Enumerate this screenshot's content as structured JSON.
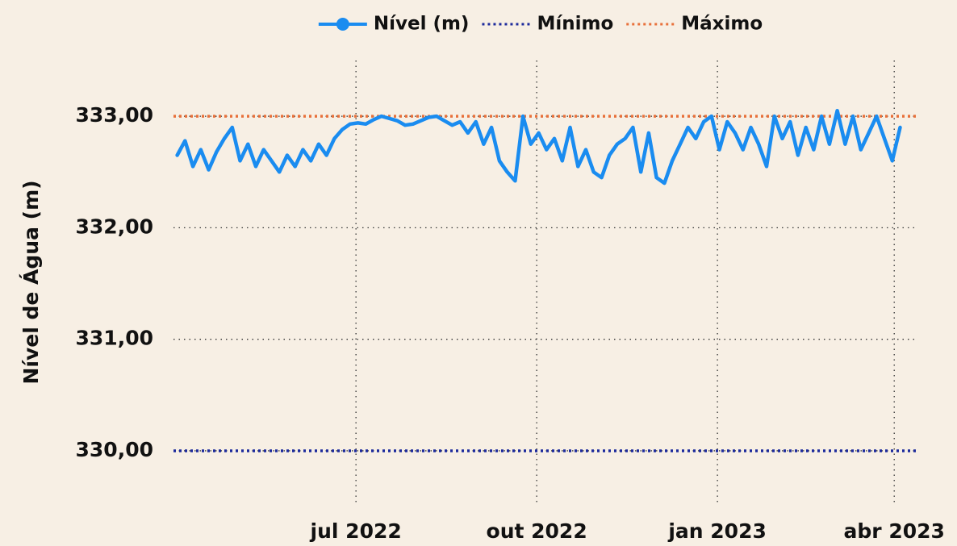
{
  "chart_data": {
    "type": "line",
    "ylabel": "Nível de Água (m)",
    "x": [
      "2022-04-01",
      "2022-04-05",
      "2022-04-09",
      "2022-04-13",
      "2022-04-17",
      "2022-04-21",
      "2022-04-25",
      "2022-04-29",
      "2022-05-03",
      "2022-05-07",
      "2022-05-11",
      "2022-05-15",
      "2022-05-19",
      "2022-05-23",
      "2022-05-27",
      "2022-05-31",
      "2022-06-04",
      "2022-06-08",
      "2022-06-12",
      "2022-06-16",
      "2022-06-20",
      "2022-06-24",
      "2022-06-28",
      "2022-07-02",
      "2022-07-06",
      "2022-07-10",
      "2022-07-14",
      "2022-07-18",
      "2022-07-22",
      "2022-07-26",
      "2022-07-30",
      "2022-08-03",
      "2022-08-07",
      "2022-08-11",
      "2022-08-15",
      "2022-08-19",
      "2022-08-23",
      "2022-08-27",
      "2022-08-31",
      "2022-09-04",
      "2022-09-08",
      "2022-09-12",
      "2022-09-16",
      "2022-09-20",
      "2022-09-24",
      "2022-09-28",
      "2022-10-02",
      "2022-10-06",
      "2022-10-10",
      "2022-10-14",
      "2022-10-18",
      "2022-10-22",
      "2022-10-26",
      "2022-10-30",
      "2022-11-03",
      "2022-11-07",
      "2022-11-11",
      "2022-11-15",
      "2022-11-19",
      "2022-11-23",
      "2022-11-27",
      "2022-12-01",
      "2022-12-05",
      "2022-12-09",
      "2022-12-13",
      "2022-12-17",
      "2022-12-21",
      "2022-12-25",
      "2022-12-29",
      "2023-01-02",
      "2023-01-06",
      "2023-01-10",
      "2023-01-14",
      "2023-01-18",
      "2023-01-22",
      "2023-01-26",
      "2023-01-30",
      "2023-02-03",
      "2023-02-07",
      "2023-02-11",
      "2023-02-15",
      "2023-02-19",
      "2023-02-23",
      "2023-02-27",
      "2023-03-03",
      "2023-03-07",
      "2023-03-11",
      "2023-03-15",
      "2023-03-19",
      "2023-03-23",
      "2023-03-27",
      "2023-03-31",
      "2023-04-04"
    ],
    "series": [
      {
        "name": "Nível (m)",
        "color": "#1a8cf0",
        "values": [
          332.65,
          332.78,
          332.55,
          332.7,
          332.52,
          332.68,
          332.8,
          332.9,
          332.6,
          332.75,
          332.55,
          332.7,
          332.6,
          332.5,
          332.65,
          332.55,
          332.7,
          332.6,
          332.75,
          332.65,
          332.8,
          332.88,
          332.93,
          332.94,
          332.93,
          332.97,
          333.0,
          332.98,
          332.96,
          332.92,
          332.93,
          332.96,
          332.99,
          333.0,
          332.96,
          332.92,
          332.95,
          332.85,
          332.95,
          332.75,
          332.9,
          332.6,
          332.5,
          332.42,
          333.0,
          332.75,
          332.85,
          332.7,
          332.8,
          332.6,
          332.9,
          332.55,
          332.7,
          332.5,
          332.45,
          332.65,
          332.75,
          332.8,
          332.9,
          332.5,
          332.85,
          332.45,
          332.4,
          332.6,
          332.75,
          332.9,
          332.8,
          332.95,
          333.0,
          332.7,
          332.95,
          332.85,
          332.7,
          332.9,
          332.75,
          332.55,
          333.0,
          332.8,
          332.95,
          332.65,
          332.9,
          332.7,
          333.0,
          332.75,
          333.05,
          332.75,
          333.0,
          332.7,
          332.85,
          333.0,
          332.8,
          332.6,
          332.9
        ]
      }
    ],
    "reference_lines": [
      {
        "name": "Mínimo",
        "color": "#1c2a9c",
        "value": 330
      },
      {
        "name": "Máximo",
        "color": "#e8703a",
        "value": 333
      }
    ],
    "xlim": [
      "2022-03-26",
      "2023-04-12"
    ],
    "xticks": [
      {
        "value": "2022-07-01",
        "label": "jul 2022"
      },
      {
        "value": "2022-10-01",
        "label": "out 2022"
      },
      {
        "value": "2023-01-01",
        "label": "jan 2023"
      },
      {
        "value": "2023-04-01",
        "label": "abr 2023"
      }
    ],
    "ylim": [
      329.45,
      333.5
    ],
    "yticks": [
      {
        "value": 330,
        "label": "330,00"
      },
      {
        "value": 331,
        "label": "331,00"
      },
      {
        "value": 332,
        "label": "332,00"
      },
      {
        "value": 333,
        "label": "333,00"
      }
    ],
    "grid": true,
    "legend": "top"
  }
}
